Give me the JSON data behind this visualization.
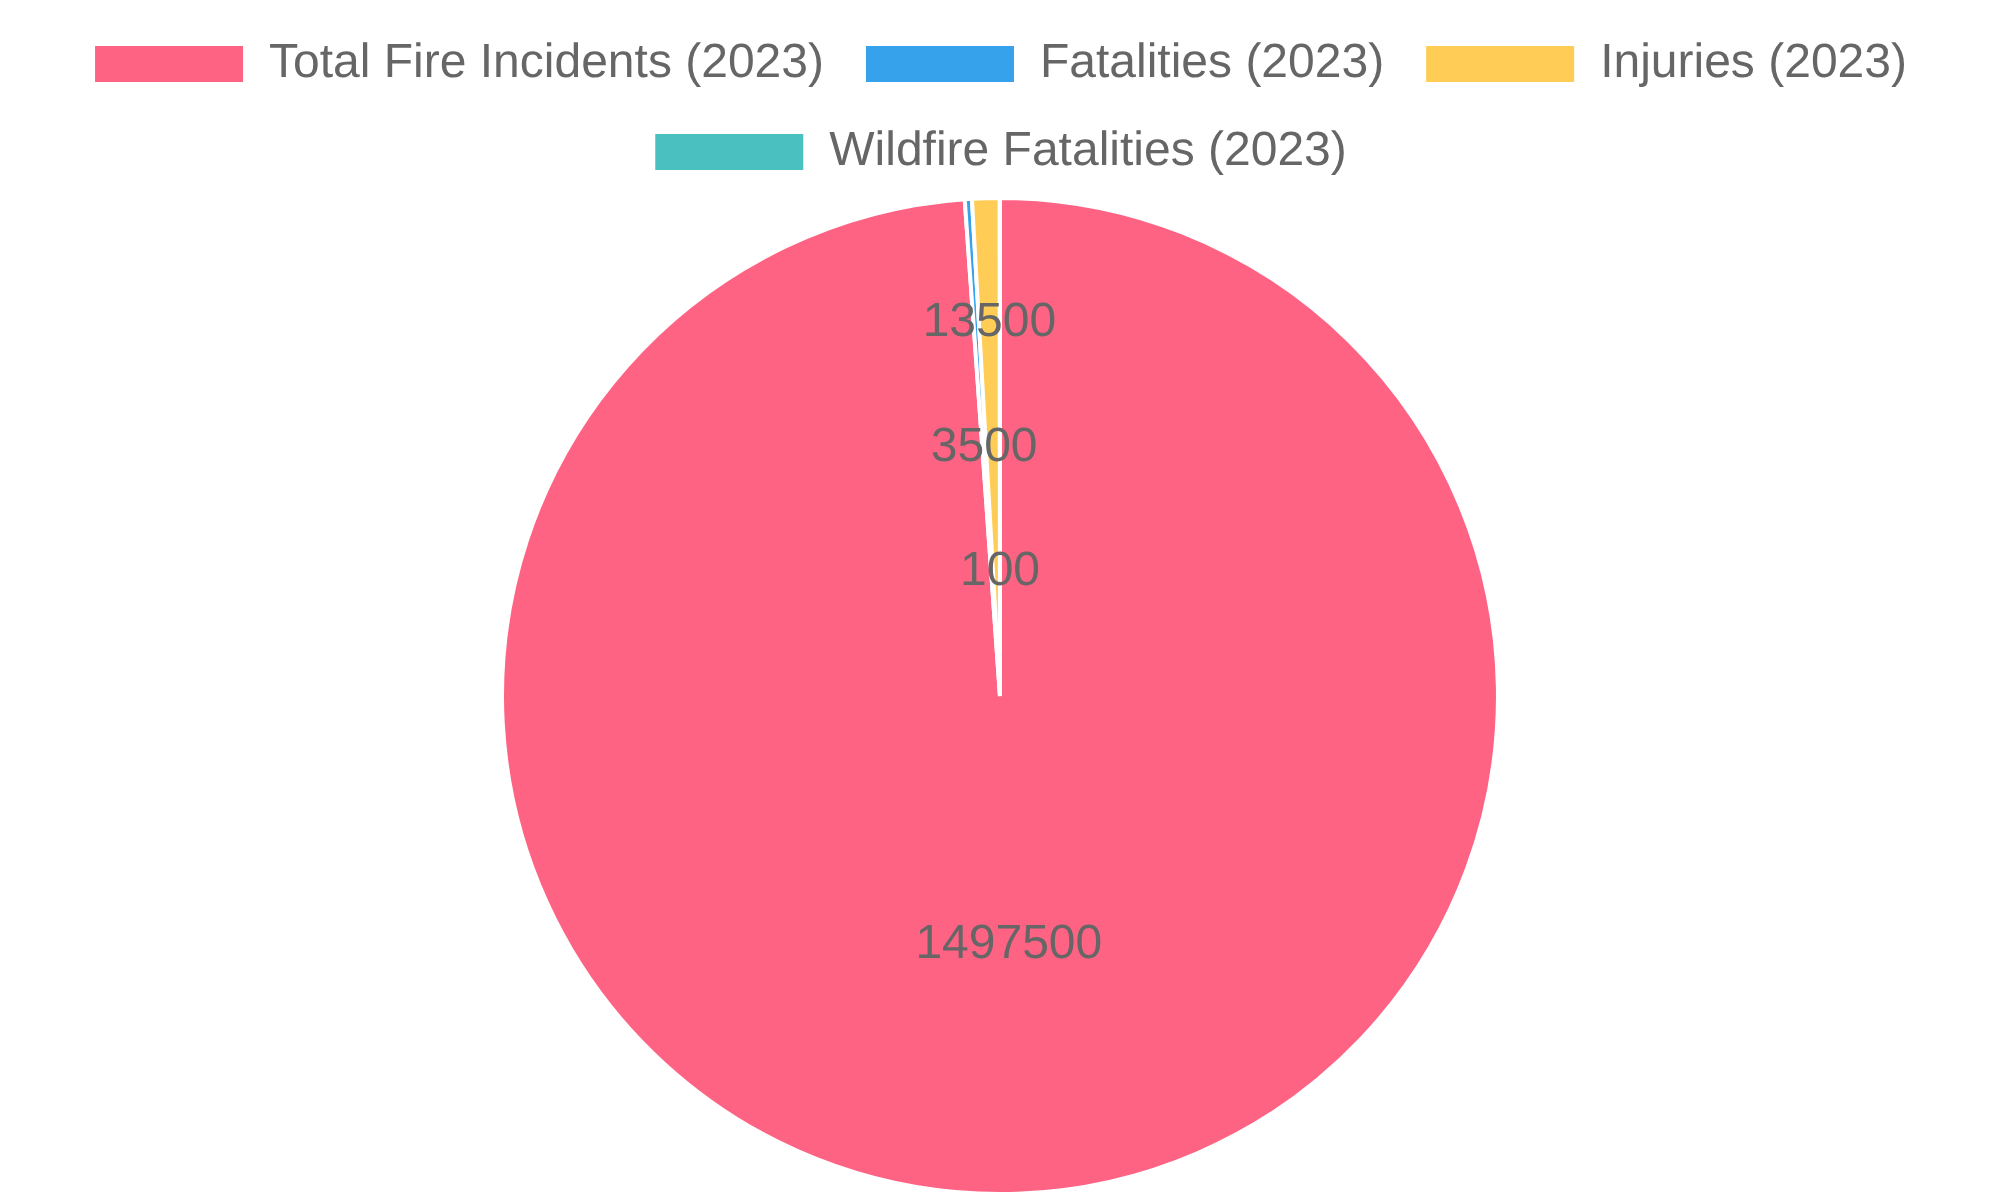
{
  "chart_data": {
    "type": "pie",
    "categories": [
      "Total Fire Incidents (2023)",
      "Fatalities (2023)",
      "Injuries (2023)",
      "Wildfire Fatalities (2023)"
    ],
    "values": [
      1497500,
      3500,
      13500,
      100
    ],
    "colors": [
      "#ff6384",
      "#36a2eb",
      "#ffcd56",
      "#4bc0c0"
    ],
    "data_labels": true,
    "legend": "top"
  }
}
